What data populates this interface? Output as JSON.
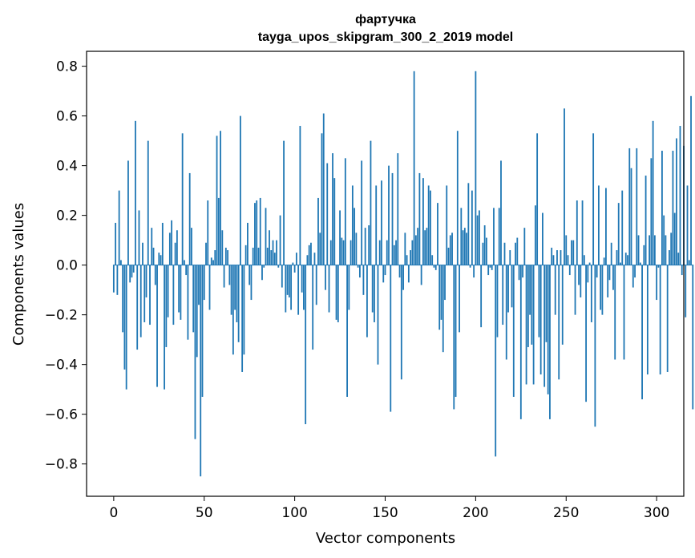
{
  "chart_data": {
    "type": "bar",
    "title": "фартучка",
    "subtitle": "tayga_upos_skipgram_300_2_2019 model",
    "xlabel": "Vector components",
    "ylabel": "Components values",
    "xlim": [
      -15,
      315
    ],
    "ylim": [
      -0.93,
      0.86
    ],
    "xticks": [
      0,
      50,
      100,
      150,
      200,
      250,
      300
    ],
    "xtick_labels": [
      "0",
      "50",
      "100",
      "150",
      "200",
      "250",
      "300"
    ],
    "yticks": [
      -0.8,
      -0.6,
      -0.4,
      -0.2,
      0.0,
      0.2,
      0.4,
      0.6,
      0.8
    ],
    "ytick_labels": [
      "−0.8",
      "−0.6",
      "−0.4",
      "−0.2",
      "0.0",
      "0.2",
      "0.4",
      "0.6",
      "0.8"
    ],
    "bar_color": "#1f77b4",
    "values": [
      -0.11,
      0.17,
      -0.12,
      0.3,
      0.02,
      -0.27,
      -0.42,
      -0.5,
      0.42,
      -0.07,
      -0.05,
      -0.03,
      0.58,
      -0.34,
      0.22,
      -0.29,
      0.09,
      -0.23,
      -0.13,
      0.5,
      -0.24,
      0.15,
      0.07,
      -0.08,
      -0.49,
      0.05,
      0.04,
      0.17,
      -0.5,
      -0.33,
      -0.21,
      0.13,
      0.18,
      -0.24,
      0.09,
      0.14,
      -0.19,
      -0.22,
      0.53,
      0.02,
      -0.04,
      -0.3,
      0.37,
      0.15,
      -0.27,
      -0.7,
      -0.37,
      -0.16,
      -0.85,
      -0.53,
      -0.14,
      0.09,
      0.26,
      -0.18,
      0.03,
      0.02,
      0.06,
      0.52,
      0.27,
      0.54,
      0.14,
      -0.09,
      0.07,
      0.06,
      -0.08,
      -0.2,
      -0.36,
      -0.18,
      -0.23,
      -0.31,
      0.6,
      -0.43,
      -0.36,
      0.08,
      0.17,
      -0.08,
      -0.14,
      0.07,
      0.25,
      0.26,
      0.07,
      0.27,
      -0.06,
      -0.01,
      0.23,
      0.07,
      0.14,
      0.06,
      0.1,
      0.05,
      0.1,
      -0.01,
      0.2,
      -0.09,
      0.5,
      -0.19,
      -0.12,
      -0.13,
      -0.18,
      0.01,
      -0.03,
      0.05,
      -0.2,
      0.56,
      -0.11,
      -0.18,
      -0.64,
      0.04,
      0.08,
      0.09,
      -0.34,
      0.05,
      -0.16,
      0.27,
      0.13,
      0.53,
      0.61,
      -0.1,
      0.41,
      -0.19,
      0.1,
      0.45,
      0.35,
      -0.22,
      -0.23,
      0.22,
      0.11,
      0.1,
      0.43,
      -0.53,
      -0.18,
      0.1,
      0.32,
      0.23,
      0.13,
      -0.01,
      -0.05,
      0.42,
      -0.12,
      0.15,
      -0.29,
      0.16,
      0.5,
      -0.19,
      -0.23,
      0.32,
      -0.4,
      0.1,
      0.34,
      -0.07,
      -0.04,
      0.1,
      0.4,
      -0.59,
      0.37,
      0.08,
      0.1,
      0.45,
      -0.05,
      -0.46,
      -0.1,
      0.13,
      0.04,
      -0.07,
      0.06,
      0.1,
      0.78,
      0.12,
      0.15,
      0.37,
      -0.08,
      0.35,
      0.14,
      0.15,
      0.32,
      0.3,
      0.04,
      -0.01,
      -0.02,
      0.25,
      -0.26,
      -0.22,
      -0.35,
      -0.14,
      0.32,
      0.07,
      0.12,
      0.13,
      -0.58,
      -0.53,
      0.54,
      -0.27,
      0.23,
      0.14,
      0.15,
      0.13,
      0.33,
      -0.01,
      0.3,
      -0.05,
      0.78,
      0.2,
      0.22,
      -0.25,
      0.09,
      0.16,
      0.11,
      -0.04,
      -0.01,
      -0.02,
      0.23,
      -0.77,
      -0.29,
      0.23,
      0.42,
      -0.24,
      0.09,
      -0.38,
      -0.19,
      0.06,
      -0.17,
      -0.53,
      0.09,
      0.11,
      -0.06,
      -0.62,
      -0.05,
      0.15,
      -0.48,
      -0.33,
      -0.2,
      -0.32,
      -0.48,
      0.24,
      0.53,
      -0.29,
      -0.44,
      0.21,
      -0.49,
      -0.31,
      -0.52,
      -0.62,
      0.07,
      0.04,
      -0.2,
      0.06,
      -0.46,
      0.06,
      -0.32,
      0.63,
      0.12,
      0.04,
      -0.04,
      0.1,
      0.1,
      -0.2,
      0.26,
      -0.08,
      -0.13,
      0.26,
      0.04,
      -0.55,
      -0.07,
      0.01,
      -0.23,
      0.53,
      -0.65,
      -0.05,
      0.32,
      -0.18,
      -0.2,
      0.03,
      0.31,
      -0.13,
      -0.06,
      0.09,
      -0.1,
      -0.38,
      0.06,
      0.25,
      0.01,
      0.3,
      -0.38,
      0.05,
      0.04,
      0.47,
      0.39,
      -0.09,
      -0.05,
      0.47,
      0.12,
      0.01,
      -0.54,
      0.08,
      0.36,
      -0.44,
      0.12,
      0.43,
      0.58,
      0.12,
      -0.14,
      -0.01,
      -0.44,
      0.46,
      0.2,
      0.12,
      -0.43,
      0.06,
      0.13,
      0.46,
      0.21,
      0.51,
      0.05,
      0.56,
      -0.04,
      0.48,
      -0.21,
      0.32,
      0.02,
      0.68,
      -0.58
    ]
  }
}
